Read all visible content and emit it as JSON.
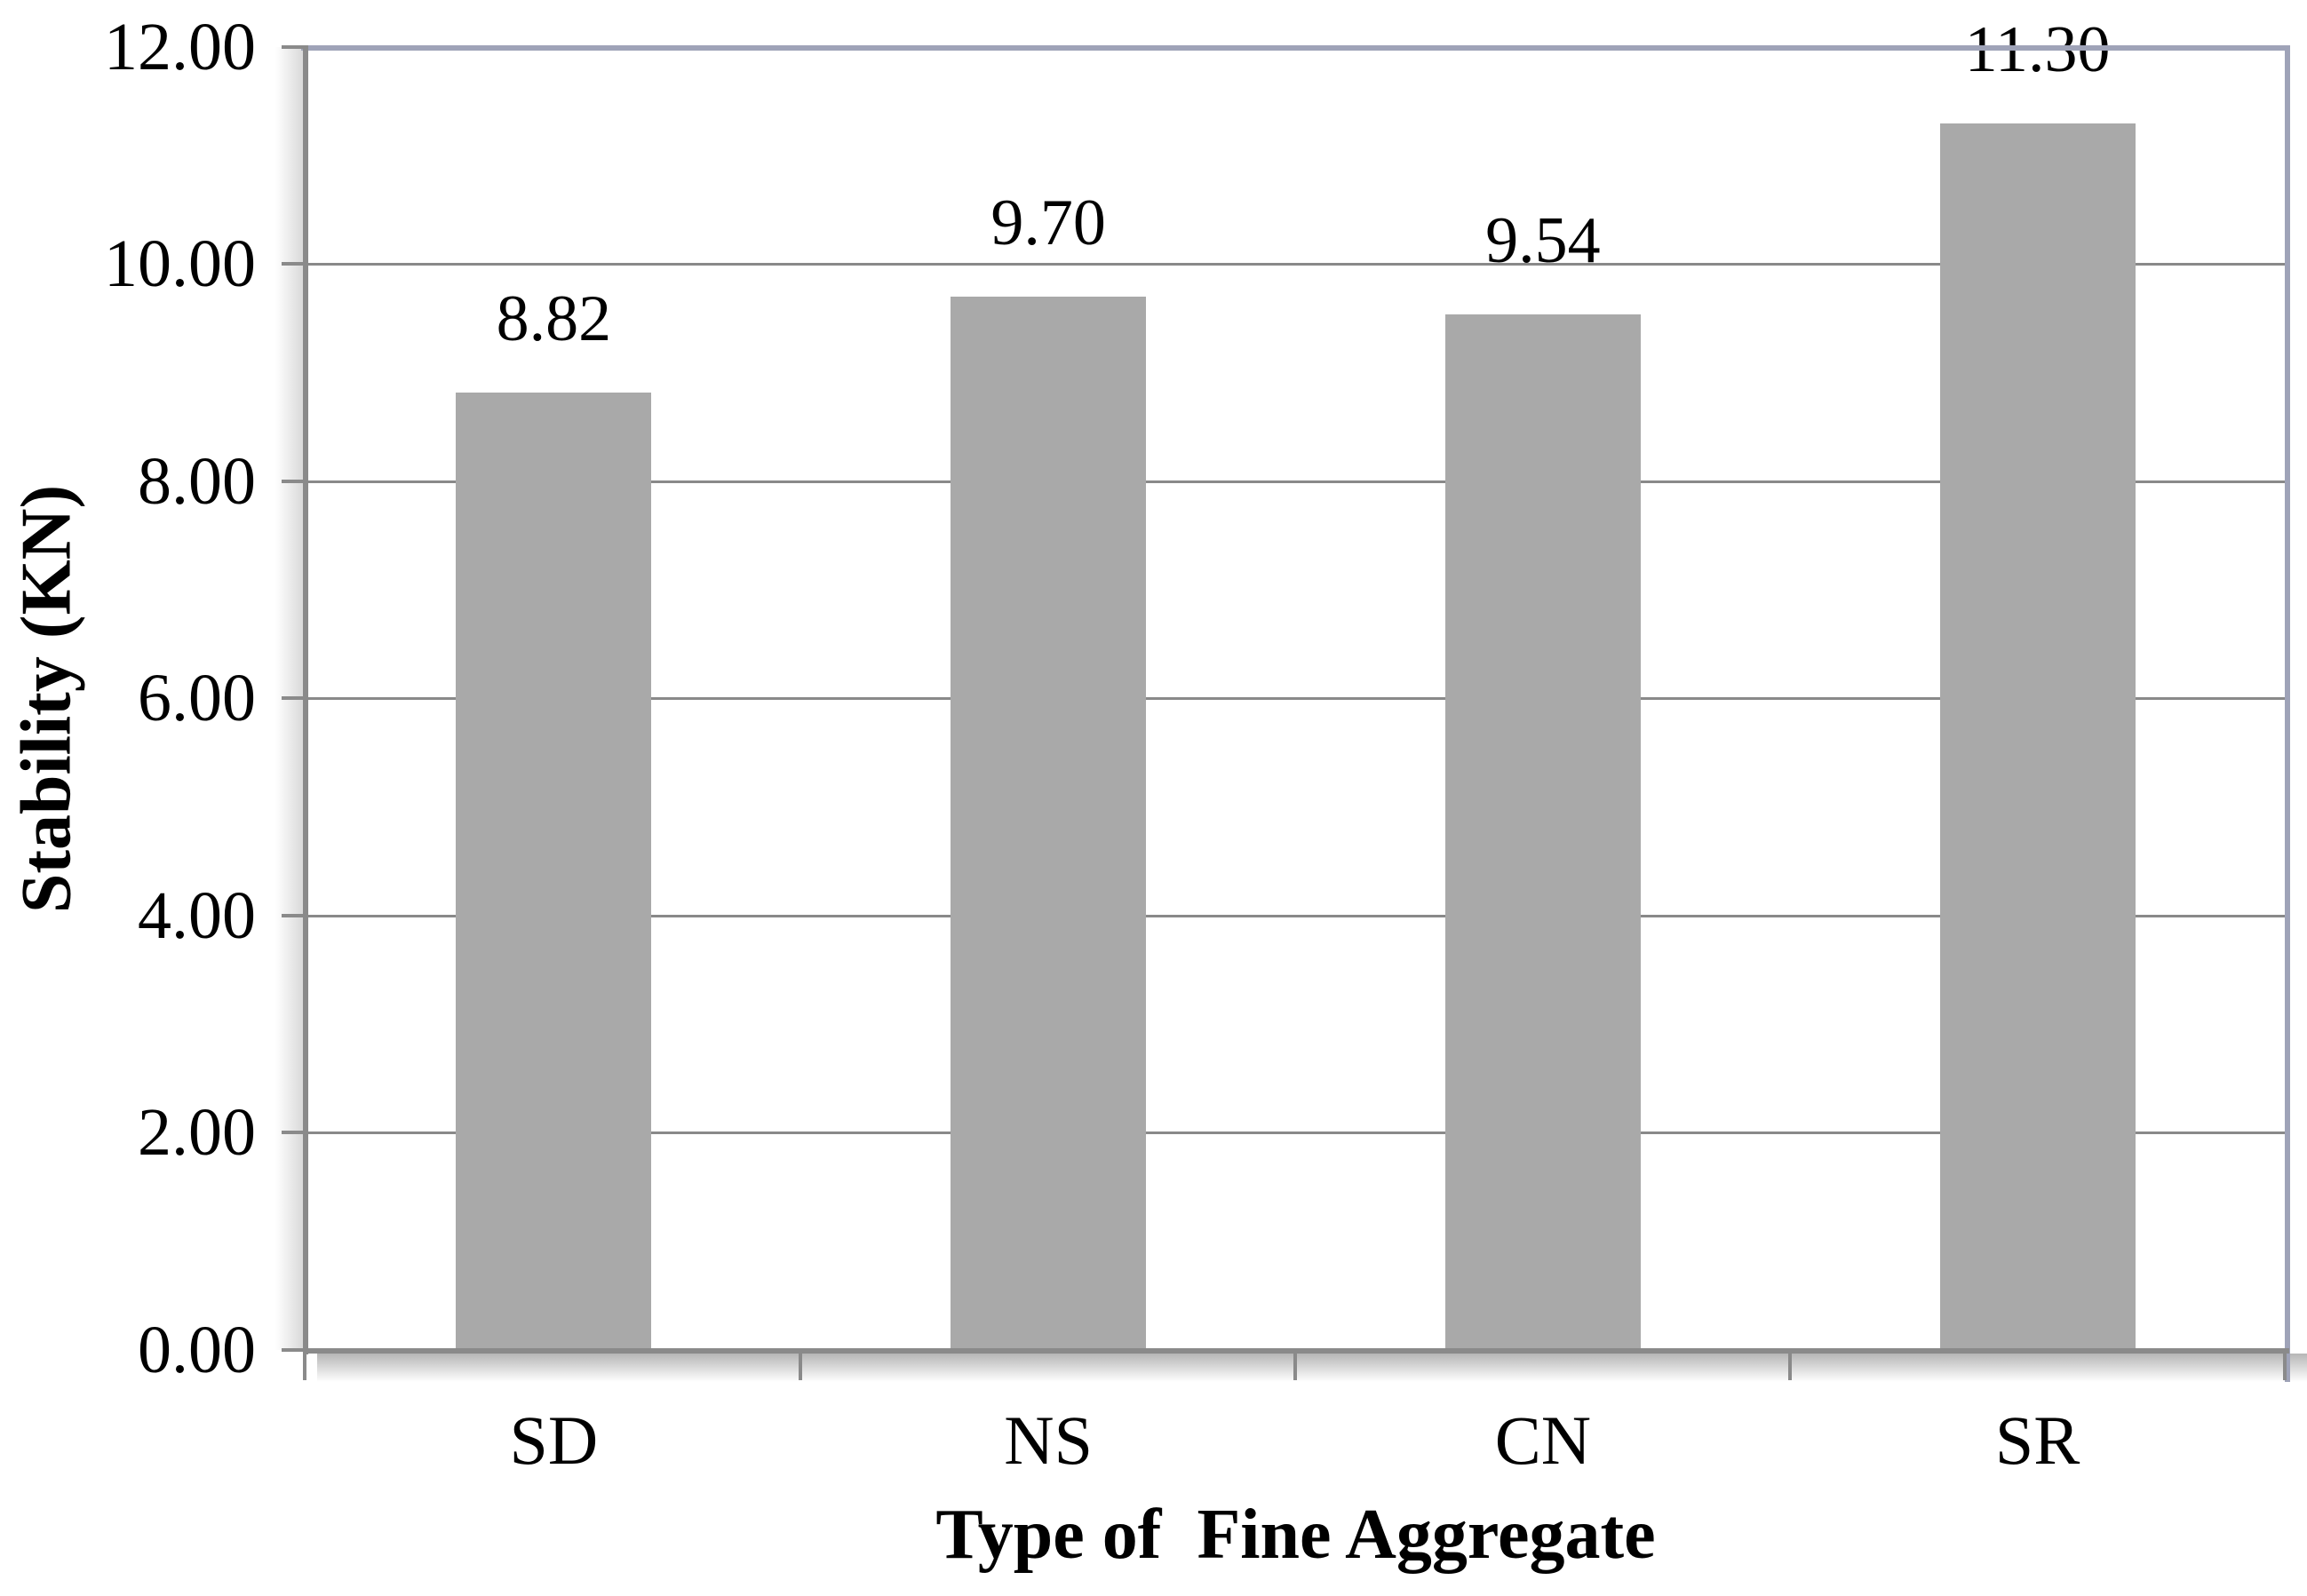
{
  "chart_data": {
    "type": "bar",
    "categories": [
      "SD",
      "NS",
      "CN",
      "SR"
    ],
    "values": [
      8.82,
      9.7,
      9.54,
      11.3
    ],
    "data_labels": [
      "8.82",
      "9.70",
      "9.54",
      "11.30"
    ],
    "title": "",
    "xlabel": "Type of  Fine Aggregate",
    "ylabel": "Stability (KN)",
    "ylim": [
      0,
      12
    ],
    "ytick_step": 2,
    "ytick_labels": [
      "12.00",
      "10.00",
      "8.00",
      "6.00",
      "4.00",
      "2.00",
      "0.00"
    ],
    "grid": "horizontal gridlines on",
    "legend": "none",
    "bar_color": "#a9a9a9",
    "gridline_color": "#898989",
    "axis_color": "#8a8a8a",
    "plot_border_color": "#9fa3b8",
    "text_color": "#000000",
    "background_color": "#ffffff"
  }
}
